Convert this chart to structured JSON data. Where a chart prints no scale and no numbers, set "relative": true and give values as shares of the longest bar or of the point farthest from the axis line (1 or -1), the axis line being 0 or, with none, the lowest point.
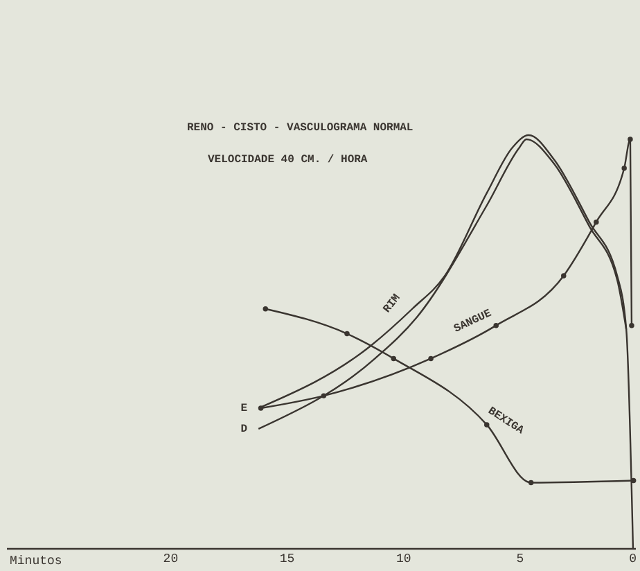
{
  "chart_data": {
    "type": "line",
    "title": "RENO - CISTO - VASCULOGRAMA NORMAL",
    "subtitle": "VELOCIDADE 40 CM. / HORA",
    "xlabel": "Minutos",
    "relative": true,
    "xlim": [
      27,
      0
    ],
    "xticks": [
      20,
      15,
      10,
      5,
      0
    ],
    "grid": false,
    "line_style": "solid",
    "series": [
      {
        "name": "E",
        "color": "#3a3530",
        "marker": "none",
        "x": [
          16.2,
          11.4,
          9.6,
          8.2,
          6.4,
          5.3,
          4.6,
          3.5,
          2.0,
          0.8,
          0.41,
          0.12
        ],
        "values": [
          0.34,
          0.49,
          0.58,
          0.66,
          0.86,
          0.97,
          1.0,
          0.94,
          0.79,
          0.66,
          0.53,
          0
        ]
      },
      {
        "name": "D",
        "color": "#3a3530",
        "marker": "none",
        "x": [
          16.2,
          11.2,
          9.4,
          6.4,
          5.0,
          4.7,
          3.5,
          2.0,
          0.8,
          0.41
        ],
        "values": [
          0.29,
          0.46,
          0.56,
          0.83,
          0.97,
          0.99,
          0.93,
          0.78,
          0.65,
          0.53
        ]
      },
      {
        "color": "#3a3530",
        "marker": "circle",
        "x": [
          16.1,
          13.4,
          8.8,
          6.0,
          3.1,
          1.7,
          0.5,
          0.24,
          0.18
        ],
        "values": [
          0.34,
          0.37,
          0.46,
          0.54,
          0.66,
          0.79,
          0.92,
          0.99,
          0.54
        ]
      },
      {
        "color": "#3a3530",
        "marker": "circle",
        "x": [
          15.9,
          12.4,
          10.4,
          6.4,
          4.5,
          0.1
        ],
        "values": [
          0.58,
          0.52,
          0.46,
          0.3,
          0.16,
          0.165
        ]
      }
    ],
    "annotations": [
      {
        "text": "RIM",
        "x": 9.6,
        "y": 0.58
      },
      {
        "text": "SANGUE",
        "x": 6.0,
        "y": 0.54
      },
      {
        "text": "BEXIGA",
        "x": 6.4,
        "y": 0.3
      }
    ]
  }
}
